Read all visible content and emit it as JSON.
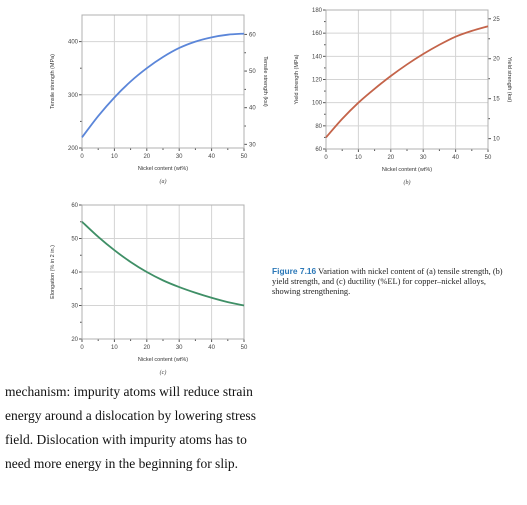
{
  "chart_data": [
    {
      "type": "line",
      "panel_label": "(a)",
      "xlabel": "Nickel content (wt%)",
      "ylabel": "Tensile strength (MPa)",
      "ylabel_right": "Tensile strength (ksi)",
      "x_ticks": [
        "0",
        "10",
        "20",
        "30",
        "40",
        "50"
      ],
      "y_ticks": [
        "200",
        "300",
        "400"
      ],
      "y_right_ticks": [
        "30",
        "40",
        "50",
        "60"
      ],
      "xlim": [
        0,
        50
      ],
      "ylim": [
        200,
        450
      ],
      "y_right_lim": [
        29,
        65.3
      ],
      "grid": true,
      "color": "#5b86d9",
      "x": [
        0,
        5,
        10,
        15,
        20,
        25,
        30,
        35,
        40,
        45,
        50
      ],
      "y": [
        220,
        260,
        295,
        325,
        350,
        371,
        388,
        400,
        408,
        413,
        415
      ]
    },
    {
      "type": "line",
      "panel_label": "(b)",
      "xlabel": "Nickel content (wt%)",
      "ylabel": "Yield strength (MPa)",
      "ylabel_right": "Yield strength (ksi)",
      "x_ticks": [
        "0",
        "10",
        "20",
        "30",
        "40",
        "50"
      ],
      "y_ticks": [
        "60",
        "80",
        "100",
        "120",
        "140",
        "160",
        "180"
      ],
      "y_right_ticks": [
        "10",
        "15",
        "20",
        "25"
      ],
      "xlim": [
        0,
        50
      ],
      "ylim": [
        60,
        180
      ],
      "y_right_lim": [
        8.7,
        26.1
      ],
      "grid": true,
      "color": "#c4644a",
      "x": [
        0,
        5,
        10,
        15,
        20,
        25,
        30,
        35,
        40,
        45,
        50
      ],
      "y": [
        70,
        86,
        100,
        112,
        123,
        133,
        142,
        150,
        157,
        162,
        166
      ]
    },
    {
      "type": "line",
      "panel_label": "(c)",
      "xlabel": "Nickel content (wt%)",
      "ylabel": "Elongation (% in 2 in.)",
      "x_ticks": [
        "0",
        "10",
        "20",
        "30",
        "40",
        "50"
      ],
      "y_ticks": [
        "20",
        "30",
        "40",
        "50",
        "60"
      ],
      "xlim": [
        0,
        50
      ],
      "ylim": [
        20,
        60
      ],
      "grid": true,
      "color": "#3f8f66",
      "x": [
        0,
        5,
        10,
        15,
        20,
        25,
        30,
        35,
        40,
        45,
        50
      ],
      "y": [
        55,
        50.5,
        46.5,
        43,
        40,
        37.5,
        35.5,
        33.8,
        32.3,
        31,
        30
      ]
    }
  ],
  "caption": {
    "figure_label": "Figure 7.16",
    "text": "Variation with nickel content of (a) tensile strength, (b) yield strength, and (c) ductility (%EL) for copper–nickel alloys, showing strengthening."
  },
  "body_text": "mechanism: impurity atoms will reduce strain energy around a dislocation by lowering stress field. Dislocation with impurity atoms has to need more energy in the beginning for slip."
}
